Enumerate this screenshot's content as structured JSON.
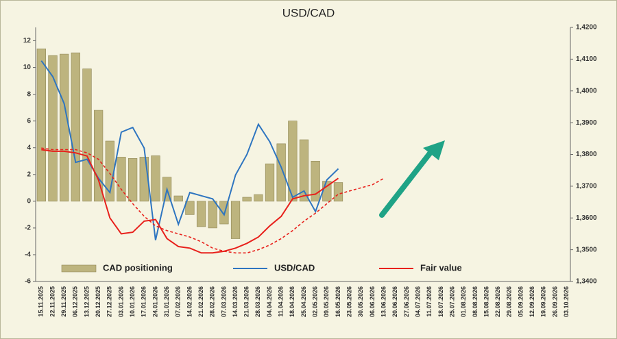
{
  "chart_data": {
    "type": "bar-line",
    "title": "USD/CAD",
    "categories": [
      "15.11.2025",
      "22.11.2025",
      "29.11.2025",
      "06.12.2025",
      "13.12.2025",
      "20.12.2025",
      "27.12.2025",
      "03.01.2026",
      "10.01.2026",
      "17.01.2026",
      "24.01.2026",
      "31.01.2026",
      "07.02.2026",
      "14.02.2026",
      "21.02.2026",
      "28.02.2026",
      "07.03.2026",
      "14.03.2026",
      "21.03.2026",
      "28.03.2026",
      "04.04.2026",
      "11.04.2026",
      "18.04.2026",
      "25.04.2026",
      "02.05.2026",
      "09.05.2026",
      "16.05.2026",
      "23.05.2026",
      "30.05.2026",
      "06.06.2026",
      "13.06.2026",
      "20.06.2026",
      "27.06.2026",
      "04.07.2026",
      "11.07.2026",
      "18.07.2026",
      "25.07.2026",
      "01.08.2026",
      "08.08.2026",
      "15.08.2026",
      "22.08.2026",
      "29.08.2026",
      "05.09.2026",
      "12.09.2026",
      "19.09.2026",
      "26.09.2026",
      "03.10.2026"
    ],
    "series": [
      {
        "name": "CAD positioning",
        "kind": "bar",
        "color": "#bdb47e",
        "values": [
          11.4,
          10.9,
          11.0,
          11.1,
          9.9,
          6.8,
          4.5,
          3.3,
          3.2,
          3.3,
          3.4,
          1.8,
          0.4,
          -1.0,
          -1.9,
          -2.0,
          -1.7,
          -2.8,
          0.3,
          0.5,
          2.8,
          4.3,
          6.0,
          4.6,
          3.0,
          1.5,
          1.4,
          null,
          null,
          null,
          null,
          null,
          null,
          null,
          null,
          null,
          null,
          null,
          null,
          null,
          null,
          null,
          null,
          null,
          null,
          null,
          null
        ]
      },
      {
        "name": "USD/CAD",
        "kind": "line",
        "axis": "y2",
        "color": "#2e75c0",
        "values": [
          1.4095,
          1.4045,
          1.396,
          1.3775,
          1.3785,
          1.3725,
          1.368,
          1.387,
          1.3885,
          1.382,
          1.353,
          1.369,
          1.358,
          1.368,
          1.367,
          1.366,
          1.361,
          1.3735,
          1.38,
          1.3895,
          1.384,
          1.376,
          1.3665,
          1.3685,
          1.362,
          1.372,
          1.3755,
          null,
          null,
          null,
          null,
          null,
          null,
          null,
          null,
          null,
          null,
          null,
          null,
          null,
          null,
          null,
          null,
          null,
          null,
          null,
          null
        ]
      },
      {
        "name": "Fair value",
        "kind": "line",
        "axis": "y2",
        "color": "#e8211c",
        "values": [
          1.3815,
          1.381,
          1.381,
          1.3805,
          1.3795,
          1.372,
          1.36,
          1.355,
          1.3555,
          1.359,
          1.3595,
          1.3535,
          1.351,
          1.3505,
          1.349,
          1.349,
          1.3495,
          1.3505,
          1.352,
          1.354,
          1.3575,
          1.3605,
          1.366,
          1.367,
          1.3675,
          1.37,
          1.3725,
          null,
          null,
          null,
          null,
          null,
          null,
          null,
          null,
          null,
          null,
          null,
          null,
          null,
          null,
          null,
          null,
          null,
          null,
          null,
          null
        ]
      },
      {
        "kind": "line",
        "axis": "y2",
        "color": "#e8211c",
        "dashed": true,
        "values": [
          1.382,
          1.3815,
          1.3815,
          1.3815,
          1.3805,
          1.3785,
          1.374,
          1.369,
          1.3645,
          1.3605,
          1.3575,
          1.356,
          1.355,
          1.354,
          1.3525,
          1.3505,
          1.3495,
          1.349,
          1.349,
          1.35,
          1.3515,
          1.3535,
          1.356,
          1.359,
          1.3615,
          1.3645,
          1.3675,
          1.3685,
          1.3695,
          1.3705,
          1.3725,
          null,
          null,
          null,
          null,
          null,
          null,
          null,
          null,
          null,
          null,
          null,
          null,
          null,
          null,
          null,
          null
        ]
      }
    ],
    "ylim": [
      -6,
      13
    ],
    "yticks": [
      -6,
      -4,
      -2,
      0,
      2,
      4,
      6,
      8,
      10,
      12
    ],
    "y2lim": [
      1.34,
      1.42
    ],
    "y2ticks": [
      {
        "value": 1.34,
        "label": "1,3400"
      },
      {
        "value": 1.35,
        "label": "1,3500"
      },
      {
        "value": 1.36,
        "label": "1,3600"
      },
      {
        "value": 1.37,
        "label": "1,3700"
      },
      {
        "value": 1.38,
        "label": "1,3800"
      },
      {
        "value": 1.39,
        "label": "1,3900"
      },
      {
        "value": 1.4,
        "label": "1,4000"
      },
      {
        "value": 1.41,
        "label": "1,4100"
      },
      {
        "value": 1.42,
        "label": "1,4200"
      }
    ]
  }
}
